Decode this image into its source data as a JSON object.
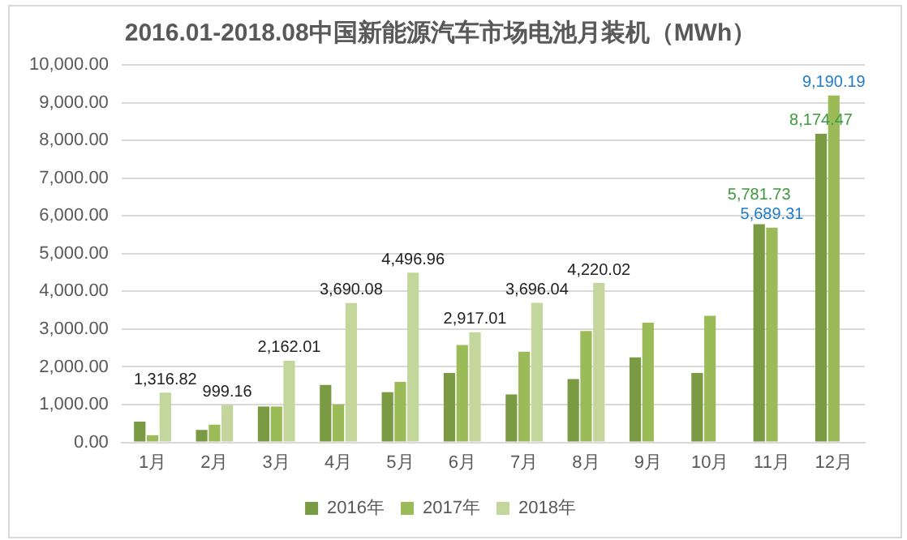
{
  "chart_data": {
    "type": "bar",
    "title": "2016.01-2018.08中国新能源汽车市场电池月装机（MWh）",
    "categories": [
      "1月",
      "2月",
      "3月",
      "4月",
      "5月",
      "6月",
      "7月",
      "8月",
      "9月",
      "10月",
      "11月",
      "12月"
    ],
    "series": [
      {
        "name": "2016年",
        "color": "#7a9a44",
        "values": [
          550,
          330,
          950,
          1520,
          1330,
          1840,
          1270,
          1680,
          2250,
          1840,
          5781.73,
          8174.47
        ],
        "value_labels": [
          null,
          null,
          null,
          null,
          null,
          null,
          null,
          null,
          null,
          null,
          "5,781.73",
          "8,174.47"
        ]
      },
      {
        "name": "2017年",
        "color": "#9bbb59",
        "values": [
          190,
          470,
          950,
          1010,
          1600,
          2580,
          2400,
          2950,
          3170,
          3350,
          5689.31,
          9190.19
        ],
        "value_labels": [
          null,
          null,
          null,
          null,
          null,
          null,
          null,
          null,
          null,
          null,
          "5,689.31",
          "9,190.19"
        ]
      },
      {
        "name": "2018年",
        "color": "#c3d69b",
        "values": [
          1316.82,
          999.16,
          2162.01,
          3690.08,
          4496.96,
          2917.01,
          3696.04,
          4220.02,
          null,
          null,
          null,
          null
        ],
        "value_labels": [
          "1,316.82",
          "999.16",
          "2,162.01",
          "3,690.08",
          "4,496.96",
          "2,917.01",
          "3,696.04",
          "4,220.02",
          null,
          null,
          null,
          null
        ]
      }
    ],
    "ylim": [
      0,
      10000
    ],
    "yticks": [
      {
        "value": 0,
        "label": "0.00"
      },
      {
        "value": 1000,
        "label": "1,000.00"
      },
      {
        "value": 2000,
        "label": "2,000.00"
      },
      {
        "value": 3000,
        "label": "3,000.00"
      },
      {
        "value": 4000,
        "label": "4,000.00"
      },
      {
        "value": 5000,
        "label": "5,000.00"
      },
      {
        "value": 6000,
        "label": "6,000.00"
      },
      {
        "value": 7000,
        "label": "7,000.00"
      },
      {
        "value": 8000,
        "label": "8,000.00"
      },
      {
        "value": 9000,
        "label": "9,000.00"
      },
      {
        "value": 10000,
        "label": "10,000.00"
      }
    ],
    "grid": "y",
    "legend": "bottom"
  }
}
